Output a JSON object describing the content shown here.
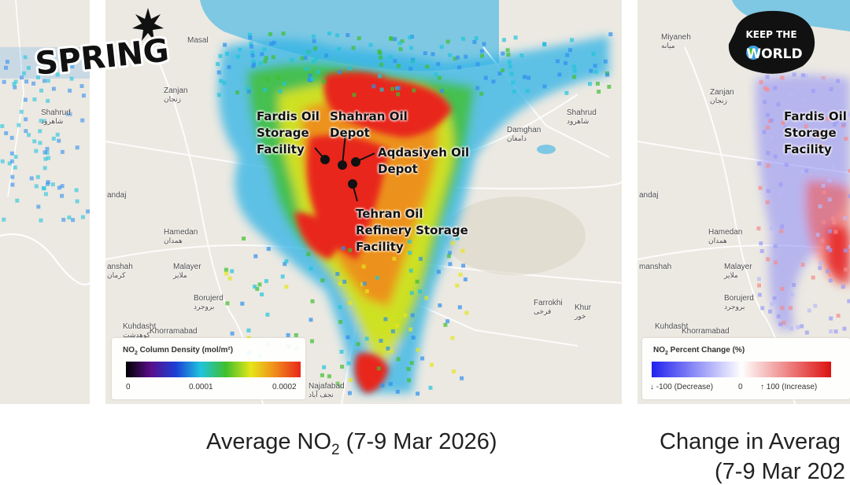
{
  "maps": {
    "left": {
      "places": [
        {
          "name": "Shahrud",
          "fa": "شاهرود"
        }
      ]
    },
    "center": {
      "places": [
        {
          "name": "Masal",
          "fa": ""
        },
        {
          "name": "Zanjan",
          "fa": "زنجان"
        },
        {
          "name": "Shahrud",
          "fa": "شاهرود"
        },
        {
          "name": "Damghan",
          "fa": "دامغان"
        },
        {
          "name": "andaj",
          "fa": ""
        },
        {
          "name": "Hamedan",
          "fa": "همدان"
        },
        {
          "name": "Malayer",
          "fa": "ملایر"
        },
        {
          "name": "anshah",
          "fa": "کرمان"
        },
        {
          "name": "Borujerd",
          "fa": "بروجرد"
        },
        {
          "name": "Farrokhi",
          "fa": "فرخی"
        },
        {
          "name": "Khur",
          "fa": "خور"
        },
        {
          "name": "Kuhdasht",
          "fa": "کوهدشت"
        },
        {
          "name": "Khorramabad",
          "fa": ""
        },
        {
          "name": "Najafabad",
          "fa": "نجف آباد"
        }
      ],
      "annotations": {
        "fardis": "Fardis Oil\nStorage\nFacility",
        "shahran": "Shahran Oil\nDepot",
        "aqdasiyeh": "Aqdasiyeh Oil\nDepot",
        "tehran": "Tehran Oil\nRefinery Storage\nFacility"
      },
      "legend": {
        "title_main": "NO",
        "title_sub": "2",
        "title_rest": " Column Density (mol/m²)",
        "ticks": [
          "0",
          "0.0001",
          "0.0002"
        ]
      },
      "caption": {
        "main": "Average NO",
        "sub": "2",
        "rest": " (7-9 Mar 2026)"
      }
    },
    "right": {
      "places": [
        {
          "name": "Miyaneh",
          "fa": "میانه"
        },
        {
          "name": "Zanjan",
          "fa": "زنجان"
        },
        {
          "name": "andaj",
          "fa": ""
        },
        {
          "name": "Hamedan",
          "fa": "همدان"
        },
        {
          "name": "manshah",
          "fa": ""
        },
        {
          "name": "Malayer",
          "fa": "ملایر"
        },
        {
          "name": "Borujerd",
          "fa": "بروجرد"
        },
        {
          "name": "Kuhdasht",
          "fa": ""
        },
        {
          "name": "Khorramabad",
          "fa": ""
        }
      ],
      "annotations": {
        "fardis": "Fardis Oil\nStorage\nFacility"
      },
      "legend": {
        "title_main": "NO",
        "title_sub": "2",
        "title_rest": " Percent Change (%)",
        "ticks": [
          "↓ -100 (Decrease)",
          "0",
          "↑ 100 (Increase)"
        ]
      },
      "caption": {
        "line1": "Change in Averag",
        "line2": "(7-9 Mar 202"
      }
    }
  },
  "logos": {
    "spring": "SPRING",
    "ktw_top": "KEEP THE",
    "ktw_bottom": "WORLD"
  },
  "colors": {
    "water": "#7ec8e3",
    "land": "#ece9e2",
    "no2_scale": [
      "#000000",
      "#5a0f8a",
      "#1b3fd6",
      "#20c4dd",
      "#3fbf2d",
      "#e6e619",
      "#f0891b",
      "#e8271b"
    ],
    "change_scale": [
      "#2222ee",
      "#ffffff",
      "#dd1111"
    ]
  }
}
